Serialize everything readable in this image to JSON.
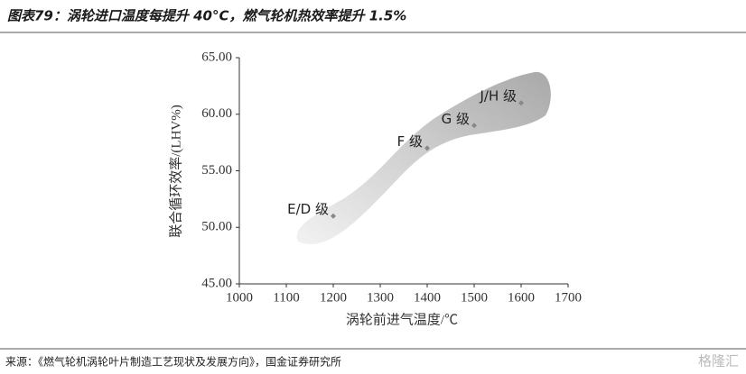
{
  "header": {
    "title": "图表79：涡轮进口温度每提升 40°C，燃气轮机热效率提升 1.5%"
  },
  "chart_data": {
    "type": "scatter",
    "x_label": "涡轮前进气温度/℃",
    "y_label": "联合循环效率/(LHV%)",
    "x": [
      1200,
      1400,
      1500,
      1600
    ],
    "values": [
      51,
      57,
      59,
      61
    ],
    "point_labels": [
      "E/D 级",
      "F 级",
      "G 级",
      "J/H 级"
    ],
    "color": "#888888",
    "xlim": [
      1000,
      1700
    ],
    "xticks": [
      1000,
      1100,
      1200,
      1300,
      1400,
      1500,
      1600,
      1700
    ],
    "ylim": [
      45,
      65
    ],
    "yticks": [
      {
        "value": 45,
        "label": "45.00"
      },
      {
        "value": 50,
        "label": "50.00"
      },
      {
        "value": 55,
        "label": "55.00"
      },
      {
        "value": 60,
        "label": "60.00"
      },
      {
        "value": 65,
        "label": "65.00"
      }
    ]
  },
  "footer": {
    "source": "来源：《燃气轮机涡轮叶片制造工艺现状及发展方向》，国金证券研究所",
    "watermark": "格隆汇"
  }
}
